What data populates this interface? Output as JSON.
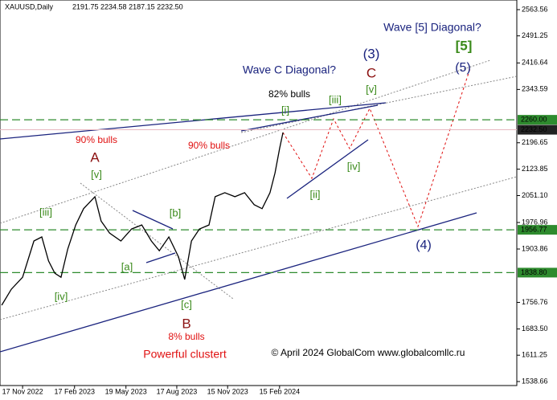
{
  "chart_data": {
    "type": "line",
    "title": "XAUUSD,Daily",
    "subtitle": "2191.75 2234.58 2187.15 2232.50",
    "x": [
      "2022-10-11",
      "2022-10-28",
      "2022-11-17",
      "2022-12-07",
      "2022-12-21",
      "2023-01-02",
      "2023-01-13",
      "2023-01-24",
      "2023-02-05",
      "2023-02-19",
      "2023-03-05",
      "2023-03-25",
      "2023-04-05",
      "2023-04-20",
      "2023-05-10",
      "2023-05-29",
      "2023-06-16",
      "2023-07-03",
      "2023-07-17",
      "2023-08-03",
      "2023-08-20",
      "2023-08-31",
      "2023-09-12",
      "2023-09-26",
      "2023-10-13",
      "2023-10-24",
      "2023-11-10",
      "2023-11-28",
      "2023-12-15",
      "2024-01-01",
      "2024-01-15",
      "2024-01-29",
      "2024-02-07",
      "2024-02-15",
      "2024-02-21"
    ],
    "series": [
      {
        "name": "XAUUSD",
        "color": "#000000",
        "values": [
          1749,
          1793,
          1826,
          1926,
          1937,
          1871,
          1837,
          1826,
          1904,
          1970,
          2015,
          2048,
          1981,
          1948,
          1926,
          1959,
          1970,
          1926,
          1899,
          1937,
          1882,
          1820,
          1926,
          1959,
          1970,
          2048,
          2059,
          2048,
          2059,
          2026,
          2015,
          2059,
          2114,
          2181,
          2225
        ]
      }
    ],
    "xlim": [
      "2022-10-08",
      "2025-04-10"
    ],
    "xticks": [
      {
        "value": "2022-11-17",
        "label": "17 Nov 2022"
      },
      {
        "value": "2023-02-17",
        "label": "17 Feb 2023"
      },
      {
        "value": "2023-05-19",
        "label": "19 May 2023"
      },
      {
        "value": "2023-08-17",
        "label": "17 Aug 2023"
      },
      {
        "value": "2023-11-15",
        "label": "15 Nov 2023"
      },
      {
        "value": "2024-02-15",
        "label": "15 Feb 2024"
      }
    ],
    "ylim": [
      1527.6,
      2590.1
    ],
    "yticks": [
      2563.56,
      2491.25,
      2416.64,
      2343.59,
      2196.65,
      2123.85,
      {
        "value": 2051.1,
        "label": "2051.10"
      },
      1976.96,
      1903.86,
      1756.76,
      {
        "value": 1683.5,
        "label": "1683.50"
      },
      1611.25,
      1538.66
    ],
    "levels": [
      {
        "value": 2260,
        "label": "2260.00",
        "color": "#2e8b2e"
      },
      {
        "value": 1956.77,
        "label": "1956.77",
        "color": "#2e8b2e"
      },
      {
        "value": 1838.8,
        "label": "1838.80",
        "color": "#2e8b2e"
      }
    ],
    "current_price": {
      "value": 2232.5,
      "label": "2232.50",
      "color": "#222222"
    },
    "annotations": [
      "Wave [5] Diagonal?",
      "[5]",
      "(5)",
      "(3)",
      "C",
      "Wave C Diagonal?",
      "82% bulls",
      "[i]",
      "[iii]",
      "[v]",
      "90% bulls",
      "90% bulls",
      "A",
      "[v]",
      "[iii]",
      "[b]",
      "[a]",
      "[iv]",
      "[c]",
      "B",
      "8% bulls",
      "Powerful clustert",
      "© April 2024 GlobalCom www.globalcomllc.ru",
      "[ii]",
      "[iv]",
      "(4)"
    ]
  }
}
